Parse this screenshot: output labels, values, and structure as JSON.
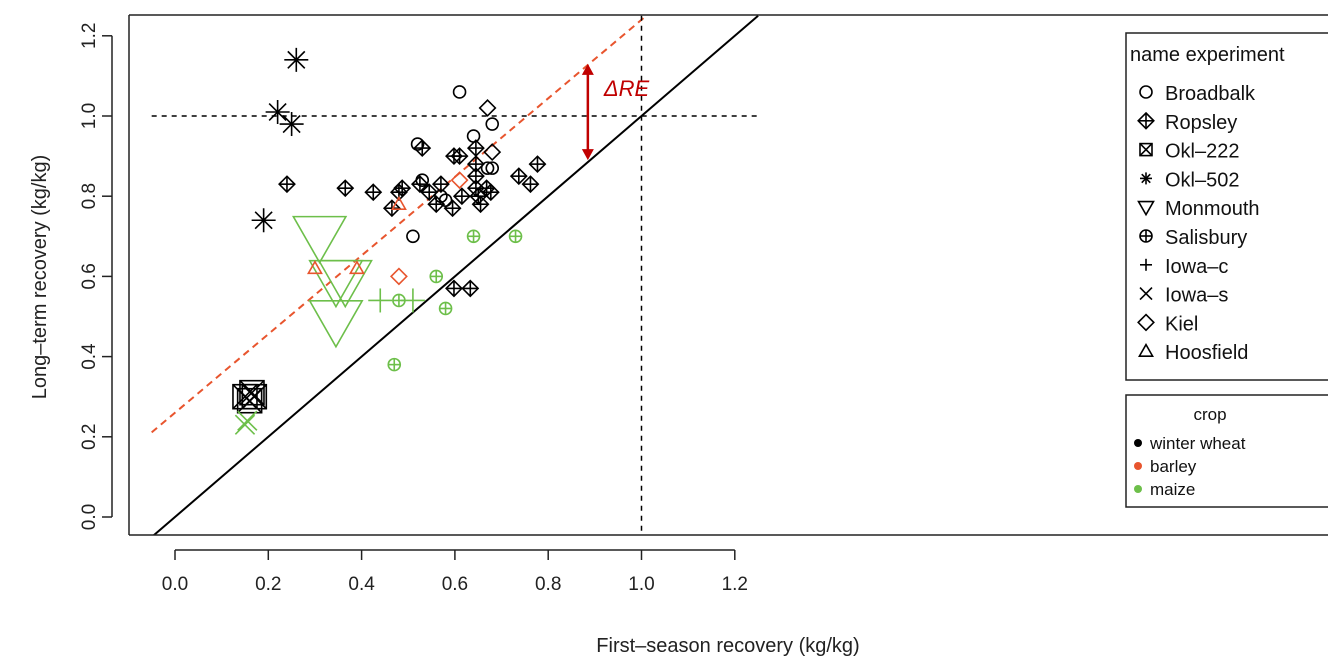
{
  "chart_data": {
    "type": "scatter",
    "title": "",
    "xlabel": "First–season recovery (kg/kg)",
    "ylabel": "Long–term recovery (kg/kg)",
    "xlim": [
      -0.05,
      1.25
    ],
    "ylim": [
      -0.05,
      1.25
    ],
    "x_ticks": [
      "0.0",
      "0.2",
      "0.4",
      "0.6",
      "0.8",
      "1.0",
      "1.2"
    ],
    "y_ticks": [
      "0.0",
      "0.2",
      "0.4",
      "0.6",
      "0.8",
      "1.0",
      "1.2"
    ],
    "reference_lines": {
      "one_to_one": {
        "style": "solid",
        "color": "#000000"
      },
      "fitted": {
        "style": "dashed",
        "color": "#e8552e",
        "intercept": 0.26,
        "slope": 0.98
      },
      "horizontal_dashed_y": 1.0,
      "vertical_dashed_x": 1.0
    },
    "annotation": {
      "text": "ΔRE",
      "x": 0.885,
      "y_from": 0.89,
      "y_to": 1.13,
      "color": "#c00000"
    },
    "legend_experiment": {
      "title": "name experiment",
      "position": "top-right",
      "items": [
        {
          "label": "Broadbalk",
          "marker": "circle"
        },
        {
          "label": "Ropsley",
          "marker": "diamond-plus"
        },
        {
          "label": "Okl–222",
          "marker": "square-x"
        },
        {
          "label": "Okl–502",
          "marker": "asterisk"
        },
        {
          "label": "Monmouth",
          "marker": "triangle-down"
        },
        {
          "label": "Salisbury",
          "marker": "circle-plus"
        },
        {
          "label": "Iowa–c",
          "marker": "plus"
        },
        {
          "label": "Iowa–s",
          "marker": "x"
        },
        {
          "label": "Kiel",
          "marker": "diamond"
        },
        {
          "label": "Hoosfield",
          "marker": "triangle-up"
        }
      ]
    },
    "legend_crop": {
      "title": "crop",
      "position": "right",
      "items": [
        {
          "label": "winter wheat",
          "color": "#000000"
        },
        {
          "label": "barley",
          "color": "#e8552e"
        },
        {
          "label": "maize",
          "color": "#6dbf4a"
        }
      ]
    },
    "series": [
      {
        "experiment": "Broadbalk",
        "crop": "winter wheat",
        "marker": "circle",
        "size": 1,
        "points": [
          [
            0.51,
            0.7
          ],
          [
            0.52,
            0.93
          ],
          [
            0.53,
            0.84
          ],
          [
            0.57,
            0.8
          ],
          [
            0.58,
            0.79
          ],
          [
            0.61,
            1.06
          ],
          [
            0.64,
            0.95
          ],
          [
            0.67,
            0.87
          ],
          [
            0.68,
            0.87
          ],
          [
            0.68,
            0.98
          ]
        ]
      },
      {
        "experiment": "Ropsley",
        "crop": "winter wheat",
        "marker": "diamond-plus",
        "size": 1,
        "points": [
          [
            0.24,
            0.83
          ],
          [
            0.365,
            0.82
          ],
          [
            0.425,
            0.81
          ],
          [
            0.465,
            0.77
          ],
          [
            0.48,
            0.81
          ],
          [
            0.487,
            0.82
          ],
          [
            0.525,
            0.83
          ],
          [
            0.53,
            0.92
          ],
          [
            0.545,
            0.81
          ],
          [
            0.56,
            0.78
          ],
          [
            0.57,
            0.83
          ],
          [
            0.595,
            0.77
          ],
          [
            0.598,
            0.9
          ],
          [
            0.598,
            0.57
          ],
          [
            0.61,
            0.9
          ],
          [
            0.615,
            0.8
          ],
          [
            0.633,
            0.57
          ],
          [
            0.645,
            0.92
          ],
          [
            0.645,
            0.88
          ],
          [
            0.645,
            0.85
          ],
          [
            0.645,
            0.82
          ],
          [
            0.65,
            0.8
          ],
          [
            0.655,
            0.78
          ],
          [
            0.668,
            0.82
          ],
          [
            0.677,
            0.81
          ],
          [
            0.737,
            0.85
          ],
          [
            0.762,
            0.83
          ],
          [
            0.777,
            0.88
          ]
        ]
      },
      {
        "experiment": "Okl–222",
        "crop": "winter wheat",
        "marker": "square-x",
        "size": 2,
        "points": [
          [
            0.15,
            0.3
          ],
          [
            0.16,
            0.29
          ],
          [
            0.17,
            0.3
          ],
          [
            0.165,
            0.31
          ]
        ]
      },
      {
        "experiment": "Okl–502",
        "crop": "winter wheat",
        "marker": "asterisk",
        "size": 2,
        "points": [
          [
            0.19,
            0.74
          ],
          [
            0.22,
            1.01
          ],
          [
            0.25,
            0.98
          ],
          [
            0.26,
            1.14
          ]
        ]
      },
      {
        "experiment": "Monmouth",
        "crop": "maize",
        "marker": "triangle-down",
        "size": 3.5,
        "points": [
          [
            0.31,
            0.7
          ],
          [
            0.345,
            0.59
          ],
          [
            0.365,
            0.59
          ],
          [
            0.345,
            0.49
          ]
        ]
      },
      {
        "experiment": "Salisbury",
        "crop": "maize",
        "marker": "circle-plus",
        "size": 1,
        "points": [
          [
            0.47,
            0.38
          ],
          [
            0.48,
            0.54
          ],
          [
            0.56,
            0.6
          ],
          [
            0.58,
            0.52
          ],
          [
            0.64,
            0.7
          ],
          [
            0.73,
            0.7
          ]
        ]
      },
      {
        "experiment": "Iowa–c",
        "crop": "maize",
        "marker": "plus",
        "size": 2,
        "points": [
          [
            0.44,
            0.54
          ],
          [
            0.51,
            0.54
          ]
        ]
      },
      {
        "experiment": "Iowa–s",
        "crop": "maize",
        "marker": "x",
        "size": 1.6,
        "points": [
          [
            0.15,
            0.23
          ],
          [
            0.155,
            0.24
          ]
        ]
      },
      {
        "experiment": "Kiel",
        "crop": "winter wheat",
        "marker": "diamond",
        "size": 1,
        "points": [
          [
            0.67,
            1.02
          ],
          [
            0.68,
            0.91
          ]
        ]
      },
      {
        "experiment": "Kiel",
        "crop": "barley",
        "marker": "diamond",
        "size": 1,
        "points": [
          [
            0.48,
            0.6
          ],
          [
            0.61,
            0.84
          ]
        ]
      },
      {
        "experiment": "Hoosfield",
        "crop": "barley",
        "marker": "triangle-up",
        "size": 1,
        "points": [
          [
            0.3,
            0.62
          ],
          [
            0.39,
            0.62
          ],
          [
            0.48,
            0.78
          ]
        ]
      }
    ]
  }
}
